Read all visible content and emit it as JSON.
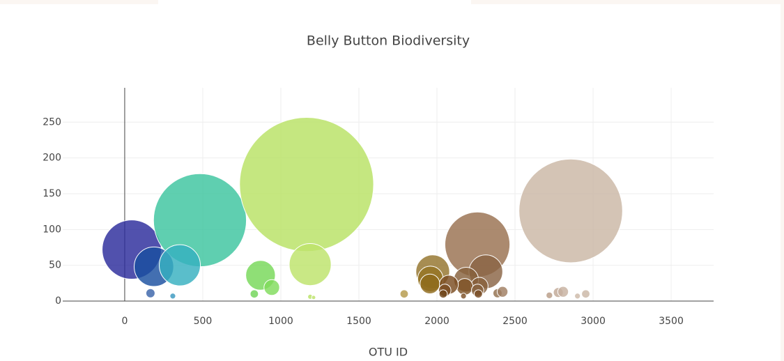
{
  "chart_data": {
    "type": "bubble",
    "title": "Belly Button Biodiversity",
    "x_label": "OTU ID",
    "x": [
      45,
      482,
      1165,
      2259,
      2857,
      187,
      353,
      870,
      942,
      1188,
      1973,
      1958,
      1955,
      2313,
      2187,
      2272,
      2178,
      2076,
      2050,
      2260,
      2040,
      2265,
      2388,
      2420,
      2777,
      2808,
      2953,
      2900,
      2720,
      165,
      308,
      1790,
      830,
      1188,
      1210,
      2170
    ],
    "values": [
      72,
      113,
      163,
      79,
      126,
      48,
      50,
      36,
      19,
      51,
      41,
      31,
      24,
      41,
      30,
      21,
      20,
      23,
      15,
      15,
      10,
      10,
      11,
      13,
      12,
      13,
      10,
      7,
      8,
      11,
      7,
      10,
      10,
      6,
      5,
      7
    ],
    "colors": [
      "#2b2b9b",
      "#3cc59f",
      "#b8e264",
      "#98704f",
      "#cbb7a5",
      "#1a4fa0",
      "#36b0bf",
      "#76d858",
      "#80dc5c",
      "#bde36a",
      "#94742c",
      "#957422",
      "#8f6a1c",
      "#8a6444",
      "#86603c",
      "#87603c",
      "#7f5326",
      "#7a4c20",
      "#7a4c20",
      "#86603c",
      "#6e4418",
      "#7b4f28",
      "#93704e",
      "#a07e62",
      "#c1a896",
      "#c7b1a0",
      "#cbb7a6",
      "#cdb9a8",
      "#b89c86",
      "#3a64aa",
      "#3a98c0",
      "#b49a4a",
      "#70d458",
      "#b8e264",
      "#bde36a",
      "#7e5228"
    ],
    "xlim": [
      -397,
      3772
    ],
    "ylim": [
      0,
      298
    ],
    "xticks": [
      0,
      500,
      1000,
      1500,
      2000,
      2500,
      3000,
      3500
    ],
    "yticks": [
      0,
      50,
      100,
      150,
      200,
      250
    ],
    "grid": true
  }
}
